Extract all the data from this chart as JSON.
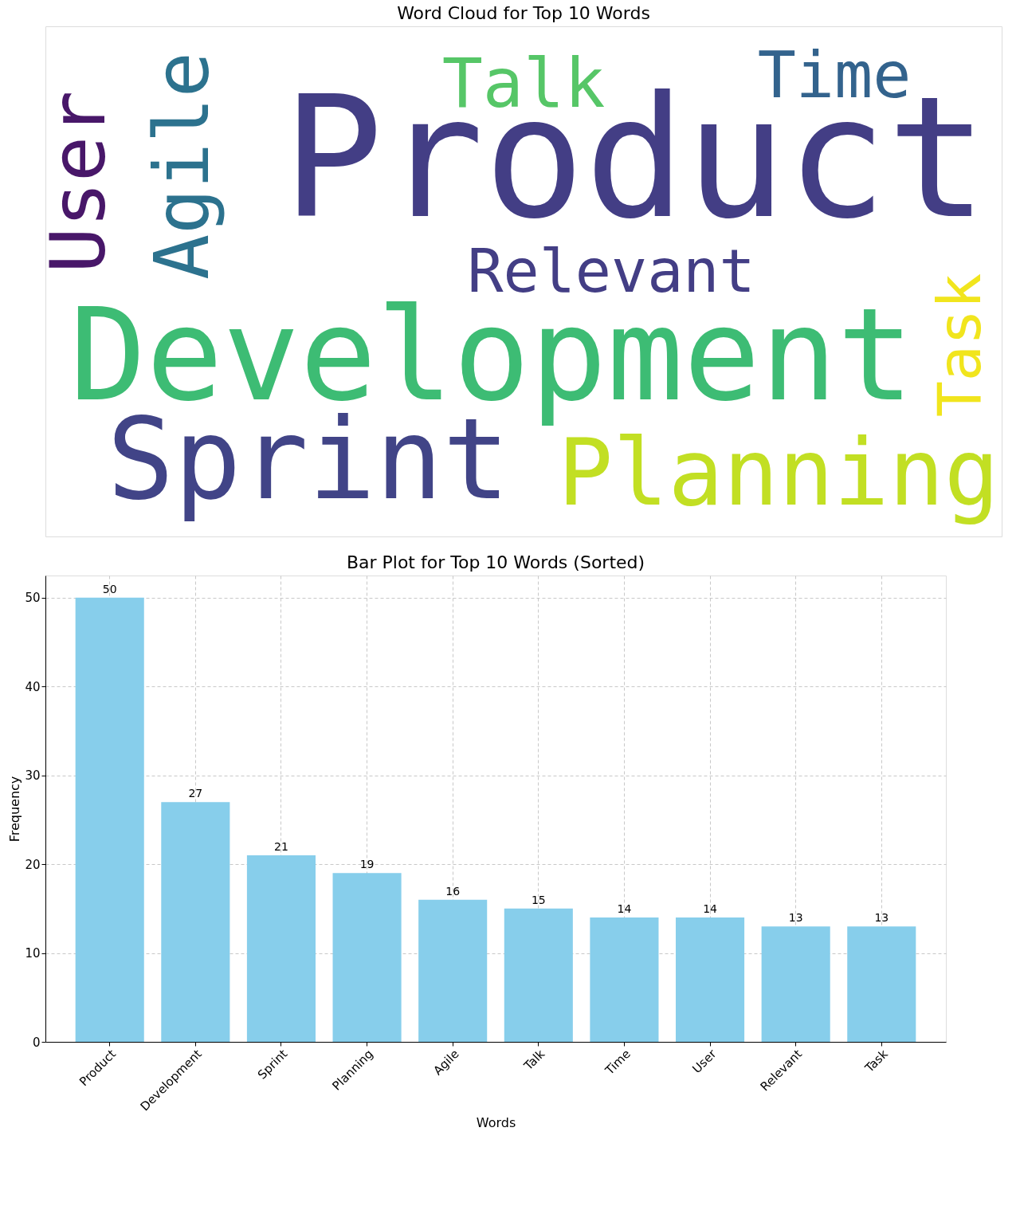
{
  "chart_data": [
    {
      "type": "other",
      "title": "Word Cloud for Top 10 Words",
      "categories": [
        "Product",
        "Development",
        "Sprint",
        "Planning",
        "Agile",
        "Talk",
        "Time",
        "User",
        "Relevant",
        "Task"
      ],
      "colors": [
        "#433e85",
        "#3dbc74",
        "#414487",
        "#c2df23",
        "#2c728e",
        "#56c667",
        "#33638d",
        "#481769",
        "#433e85",
        "#f1e51d"
      ]
    },
    {
      "type": "bar",
      "title": "Bar Plot for Top 10 Words (Sorted)",
      "xlabel": "Words",
      "ylabel": "Frequency",
      "categories": [
        "Product",
        "Development",
        "Sprint",
        "Planning",
        "Agile",
        "Talk",
        "Time",
        "User",
        "Relevant",
        "Task"
      ],
      "values": [
        50,
        27,
        21,
        19,
        16,
        15,
        14,
        14,
        13,
        13
      ],
      "color": "#87ceeb",
      "ylim": [
        0,
        52.5
      ],
      "yticks": [
        0,
        10,
        20,
        30,
        40,
        50
      ],
      "grid": true,
      "data_labels": true
    }
  ]
}
